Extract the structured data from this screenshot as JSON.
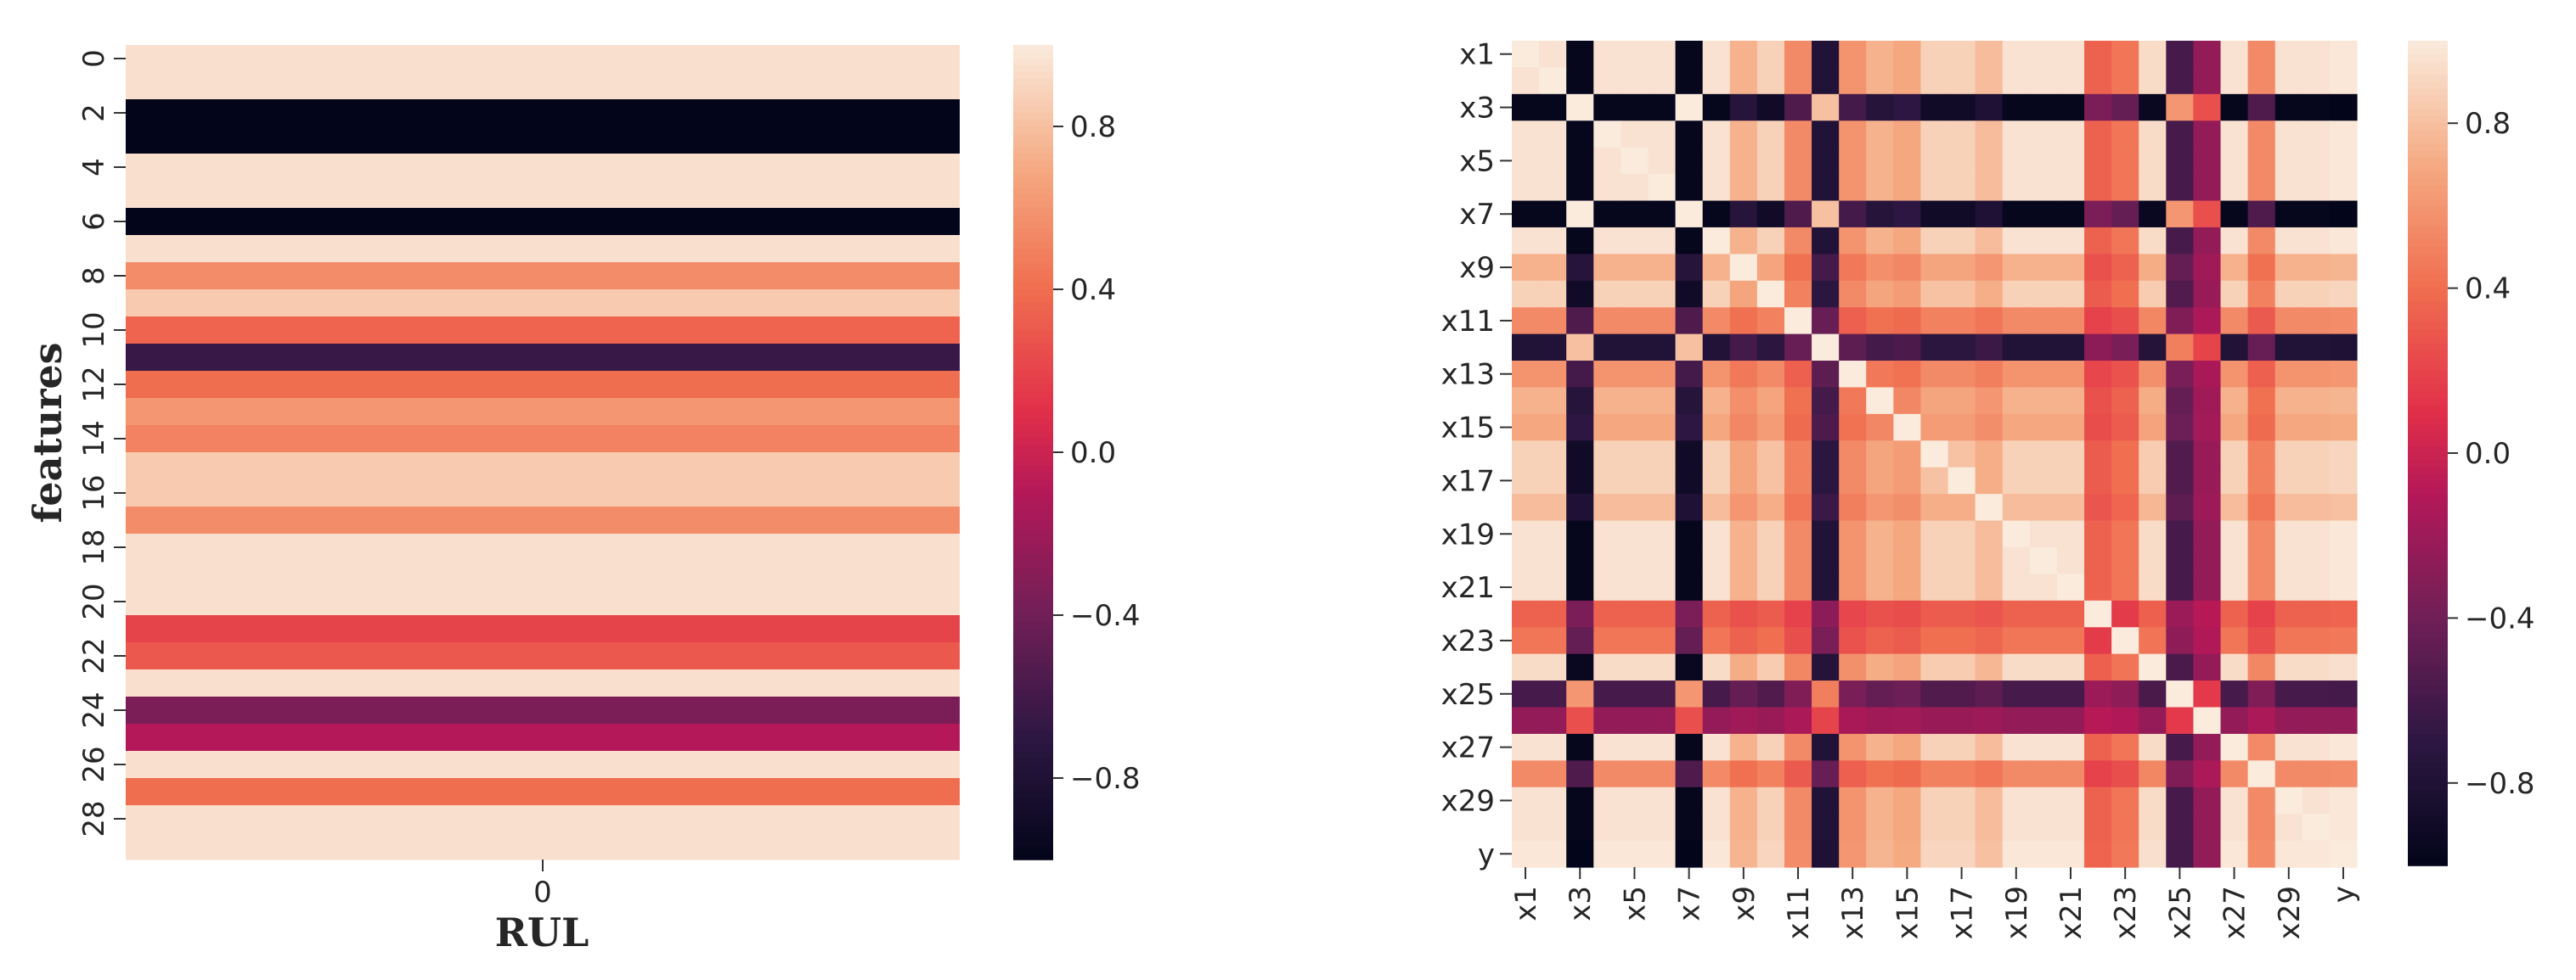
{
  "chart_data": [
    {
      "type": "heatmap",
      "xlabel": "RUL",
      "ylabel": "features",
      "x_categories": [
        "0"
      ],
      "y_categories": [
        "0",
        "1",
        "2",
        "3",
        "4",
        "5",
        "6",
        "7",
        "8",
        "9",
        "10",
        "11",
        "12",
        "13",
        "14",
        "15",
        "16",
        "17",
        "18",
        "19",
        "20",
        "21",
        "22",
        "23",
        "24",
        "25",
        "26",
        "27",
        "28",
        "29"
      ],
      "y_tick_labels": [
        "0",
        "2",
        "4",
        "6",
        "8",
        "10",
        "12",
        "14",
        "16",
        "18",
        "20",
        "22",
        "24",
        "26",
        "28"
      ],
      "values": [
        0.95,
        0.95,
        -1.0,
        -1.0,
        0.95,
        0.95,
        -1.0,
        0.95,
        0.55,
        0.85,
        0.35,
        -0.65,
        0.4,
        0.6,
        0.5,
        0.85,
        0.85,
        0.55,
        0.95,
        0.95,
        0.95,
        0.2,
        0.3,
        0.95,
        -0.35,
        -0.1,
        0.95,
        0.4,
        0.95,
        0.95
      ],
      "colorbar": {
        "min": -1.0,
        "max": 1.0,
        "ticks": [
          "0.8",
          "0.4",
          "0.0",
          "−0.4",
          "−0.8"
        ],
        "tick_values": [
          0.8,
          0.4,
          0.0,
          -0.4,
          -0.8
        ]
      }
    },
    {
      "type": "heatmap",
      "x_categories": [
        "x1",
        "x2",
        "x3",
        "x4",
        "x5",
        "x6",
        "x7",
        "x8",
        "x9",
        "x10",
        "x11",
        "x12",
        "x13",
        "x14",
        "x15",
        "x16",
        "x17",
        "x18",
        "x19",
        "x20",
        "x21",
        "x22",
        "x23",
        "x24",
        "x25",
        "x26",
        "x27",
        "x28",
        "x29",
        "x30",
        "y"
      ],
      "x_tick_labels": [
        "x1",
        "x3",
        "x5",
        "x7",
        "x9",
        "x11",
        "x13",
        "x15",
        "x17",
        "x19",
        "x21",
        "x23",
        "x25",
        "x27",
        "x29",
        "y"
      ],
      "y_tick_labels": [
        "x1",
        "x3",
        "x5",
        "x7",
        "x9",
        "x11",
        "x13",
        "x15",
        "x17",
        "x19",
        "x21",
        "x23",
        "x25",
        "x27",
        "x29",
        "y"
      ],
      "feature_signs": [
        1,
        1,
        -1,
        1,
        1,
        1,
        -1,
        1,
        1,
        1,
        1,
        -1,
        1,
        1,
        1,
        1,
        1,
        1,
        1,
        1,
        1,
        1,
        1,
        1,
        -1,
        -1,
        1,
        1,
        1,
        1,
        1
      ],
      "feature_strengths": [
        0.98,
        0.98,
        1.0,
        0.98,
        0.98,
        0.98,
        1.0,
        0.98,
        0.75,
        0.9,
        0.55,
        0.8,
        0.6,
        0.75,
        0.7,
        0.9,
        0.9,
        0.8,
        0.98,
        0.98,
        0.98,
        0.35,
        0.45,
        0.95,
        0.6,
        0.25,
        0.98,
        0.55,
        0.98,
        0.98,
        1.0
      ],
      "colorbar": {
        "min": -1.0,
        "max": 1.0,
        "ticks": [
          "0.8",
          "0.4",
          "0.0",
          "−0.4",
          "−0.8"
        ],
        "tick_values": [
          0.8,
          0.4,
          0.0,
          -0.4,
          -0.8
        ]
      }
    }
  ]
}
